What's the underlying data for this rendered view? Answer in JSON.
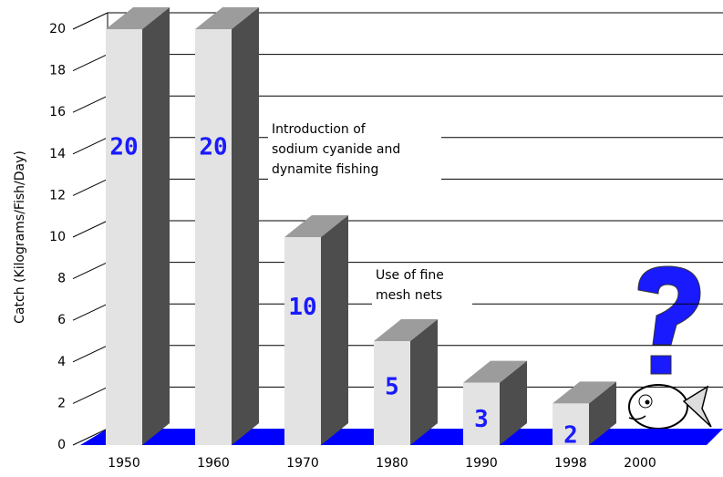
{
  "chart_data": {
    "type": "bar3d",
    "y_label": "Catch  (Kilograms/Fish/Day)",
    "categories": [
      "1950",
      "1960",
      "1970",
      "1980",
      "1990",
      "1998",
      "2000"
    ],
    "values": [
      20,
      20,
      10,
      5,
      3,
      2,
      null
    ],
    "colors": {
      "front": "#e3e3e3",
      "side": "#4d4d4d",
      "top": "#9c9c9c",
      "floor": "#0000ff",
      "label": "#1a1aff"
    },
    "ylim": [
      0,
      20
    ],
    "yticks": [
      0,
      2,
      4,
      6,
      8,
      10,
      12,
      14,
      16,
      18,
      20
    ],
    "grid": true,
    "annotations": [
      {
        "lines": [
          "Introduction of",
          "sodium cyanide and",
          "dynamite fishing"
        ]
      },
      {
        "lines": [
          "Use of fine",
          "mesh nets"
        ]
      }
    ]
  }
}
